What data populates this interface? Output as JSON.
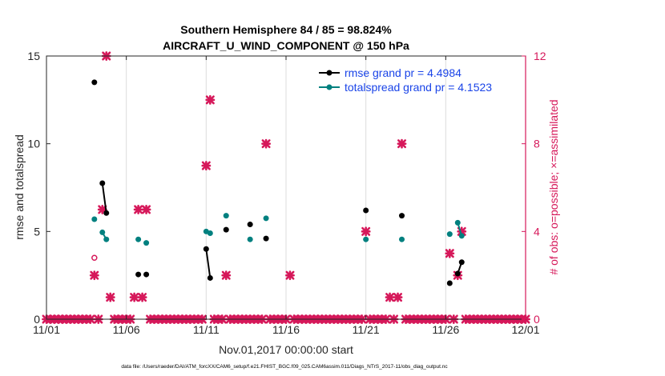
{
  "chart_data": {
    "type": "scatter",
    "title_line1": "Southern Hemisphere 84 / 85 = 98.824%",
    "title_line2": "AIRCRAFT_U_WIND_COMPONENT @ 150 hPa",
    "xlabel": "Nov.01,2017 00:00:00 start",
    "ylabel_left": "rmse and totalspread",
    "ylabel_right": "# of obs: o=possible; ×=assimilated",
    "footer": "data file: /Users/raeder/DAI/ATM_forcXX/CAM6_setup/f.e21.FHIST_BGC.f09_025.CAM6assim.011/Diags_NTrS_2017-11/obs_diag_output.nc",
    "xlim": [
      0,
      30
    ],
    "ylim_left": [
      0,
      15
    ],
    "ylim_right": [
      0,
      12
    ],
    "xticks": [
      0,
      5,
      10,
      15,
      20,
      25,
      30
    ],
    "xtick_labels": [
      "11/01",
      "11/06",
      "11/11",
      "11/16",
      "11/21",
      "11/26",
      "12/01"
    ],
    "yticks_left": [
      0,
      5,
      10,
      15
    ],
    "yticks_left_labels": [
      "0",
      "5",
      "10",
      "15"
    ],
    "yticks_right": [
      0,
      4,
      8,
      12
    ],
    "yticks_right_labels": [
      "0",
      "4",
      "8",
      "12"
    ],
    "colors": {
      "rmse": "#000000",
      "spread": "#00807f",
      "obs": "#d6185a",
      "legend_text": "#1a44e8"
    },
    "legend": [
      {
        "name": "rmse grand pr = 4.4984"
      },
      {
        "name": "totalspread grand pr = 4.1523"
      }
    ],
    "rmse_segments": [
      [
        [
          3.0,
          13.5
        ]
      ],
      [
        [
          3.5,
          7.75
        ],
        [
          3.75,
          6.05
        ]
      ],
      [
        [
          5.75,
          2.55
        ]
      ],
      [
        [
          6.25,
          2.55
        ]
      ],
      [
        [
          10.0,
          4.0
        ],
        [
          10.25,
          2.35
        ]
      ],
      [
        [
          11.25,
          5.1
        ]
      ],
      [
        [
          12.75,
          5.4
        ]
      ],
      [
        [
          13.75,
          4.6
        ]
      ],
      [
        [
          20.0,
          6.2
        ]
      ],
      [
        [
          22.25,
          5.9
        ]
      ],
      [
        [
          25.25,
          2.05
        ]
      ],
      [
        [
          25.75,
          2.6
        ],
        [
          26.0,
          3.25
        ]
      ]
    ],
    "spread_segments": [
      [
        [
          3.0,
          5.7
        ]
      ],
      [
        [
          3.5,
          4.95
        ],
        [
          3.75,
          4.55
        ]
      ],
      [
        [
          5.75,
          4.55
        ]
      ],
      [
        [
          6.25,
          4.35
        ]
      ],
      [
        [
          10.0,
          5.0
        ],
        [
          10.25,
          4.9
        ]
      ],
      [
        [
          11.25,
          5.9
        ]
      ],
      [
        [
          12.75,
          4.55
        ]
      ],
      [
        [
          13.75,
          5.75
        ]
      ],
      [
        [
          20.0,
          4.55
        ]
      ],
      [
        [
          22.25,
          4.55
        ]
      ],
      [
        [
          25.25,
          4.85
        ]
      ],
      [
        [
          25.75,
          5.5
        ],
        [
          26.0,
          4.75
        ]
      ]
    ],
    "obs_possible": [
      [
        3.0,
        2.8
      ]
    ],
    "obs_assimilated_x_start": 0,
    "obs_assimilated_x_step": 0.25,
    "obs_assimilated_nonzero": [
      {
        "x": 3.0,
        "y": 2
      },
      {
        "x": 3.5,
        "y": 5
      },
      {
        "x": 3.75,
        "y": 12
      },
      {
        "x": 4.0,
        "y": 1
      },
      {
        "x": 5.5,
        "y": 1
      },
      {
        "x": 5.75,
        "y": 5
      },
      {
        "x": 6.0,
        "y": 1
      },
      {
        "x": 6.25,
        "y": 5
      },
      {
        "x": 10.0,
        "y": 7
      },
      {
        "x": 10.25,
        "y": 10
      },
      {
        "x": 11.25,
        "y": 2
      },
      {
        "x": 13.75,
        "y": 8
      },
      {
        "x": 15.25,
        "y": 2
      },
      {
        "x": 20.0,
        "y": 4
      },
      {
        "x": 21.5,
        "y": 1
      },
      {
        "x": 22.0,
        "y": 1
      },
      {
        "x": 22.25,
        "y": 8
      },
      {
        "x": 25.25,
        "y": 3
      },
      {
        "x": 25.75,
        "y": 2
      },
      {
        "x": 26.0,
        "y": 4
      }
    ]
  }
}
